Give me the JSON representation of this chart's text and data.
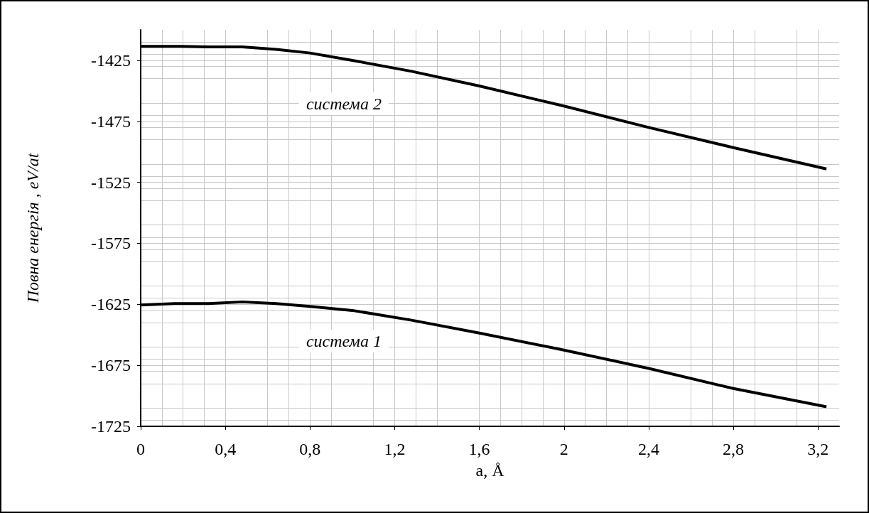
{
  "chart_data": {
    "type": "line",
    "xlabel": "a, Å",
    "ylabel": "Повна енергія , eV/at",
    "xlim": [
      0,
      3.3
    ],
    "xticks": [
      {
        "value": 0,
        "label": "0"
      },
      {
        "value": 0.4,
        "label": "0,4"
      },
      {
        "value": 0.8,
        "label": "0,8"
      },
      {
        "value": 1.2,
        "label": "1,2"
      },
      {
        "value": 1.6,
        "label": "1,6"
      },
      {
        "value": 2,
        "label": "2"
      },
      {
        "value": 2.4,
        "label": "2,4"
      },
      {
        "value": 2.8,
        "label": "2,8"
      },
      {
        "value": 3.2,
        "label": "3,2"
      }
    ],
    "ylim": [
      -1725,
      -1400
    ],
    "yticks": [
      -1725,
      -1675,
      -1625,
      -1575,
      -1525,
      -1475,
      -1425
    ],
    "grid": true,
    "marker": "none",
    "line_style": "solid",
    "series": [
      {
        "name": "система 2",
        "color": "#000000",
        "x": [
          0,
          0.16,
          0.32,
          0.48,
          0.64,
          0.8,
          1.0,
          1.28,
          1.6,
          2.0,
          2.4,
          2.8,
          3.24
        ],
        "values": [
          -1413.5,
          -1413.5,
          -1414,
          -1414,
          -1416,
          -1419,
          -1425,
          -1434,
          -1446,
          -1462.5,
          -1480,
          -1496.5,
          -1514
        ]
      },
      {
        "name": "система 1",
        "color": "#000000",
        "x": [
          0,
          0.16,
          0.32,
          0.48,
          0.64,
          0.8,
          1.0,
          1.28,
          1.6,
          2.0,
          2.4,
          2.8,
          3.24
        ],
        "values": [
          -1625.6,
          -1624.4,
          -1624.4,
          -1623,
          -1624.4,
          -1626.7,
          -1630,
          -1638,
          -1648.6,
          -1662.5,
          -1677.5,
          -1694,
          -1709
        ]
      }
    ]
  }
}
